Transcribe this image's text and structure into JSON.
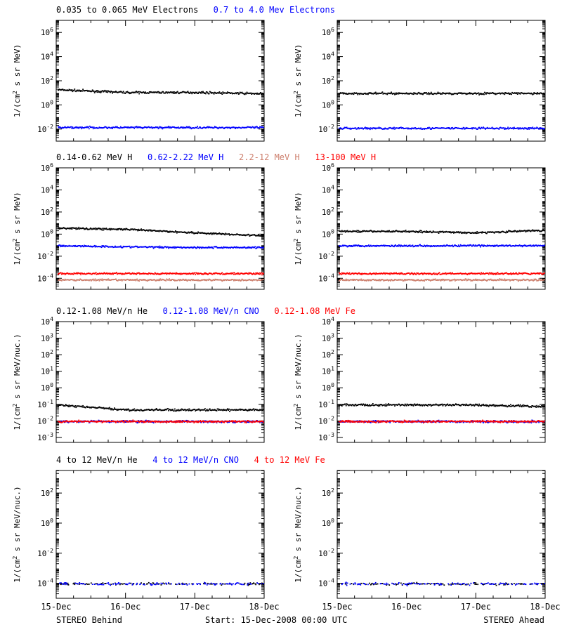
{
  "colors": {
    "black": "#000000",
    "blue": "#0000ff",
    "red": "#ff0000",
    "tan": "#cd7f6d"
  },
  "x_ticks": [
    "15-Dec",
    "16-Dec",
    "17-Dec",
    "18-Dec"
  ],
  "footer": {
    "left": "STEREO Behind",
    "center": "Start: 15-Dec-2008 00:00 UTC",
    "right": "STEREO Ahead"
  },
  "chart_data": [
    {
      "type": "scatter",
      "title": "",
      "legend": [
        {
          "label": "0.035 to 0.065 MeV Electrons",
          "color": "#000000"
        },
        {
          "label": "0.7 to 4.0 Mev Electrons",
          "color": "#0000ff"
        }
      ],
      "ylabel": "1/(cm2 s sr MeV)",
      "yscale": "log",
      "ylim_exp": [
        -3,
        7
      ],
      "y_tick_exponents": [
        -2,
        0,
        2,
        4,
        6
      ],
      "x_range_days": [
        0,
        3
      ],
      "panels": [
        {
          "spacecraft": "STEREO Behind",
          "series": [
            {
              "name": "0.035 to 0.065 MeV Electrons",
              "color": "#000000",
              "levels": [
                20,
                12,
                12,
                9.5
              ]
            },
            {
              "name": "0.7 to 4.0 Mev Electrons",
              "color": "#0000ff",
              "levels": [
                0.015,
                0.015,
                0.015,
                0.015
              ]
            }
          ]
        },
        {
          "spacecraft": "STEREO Ahead",
          "series": [
            {
              "name": "0.035 to 0.065 MeV Electrons",
              "color": "#000000",
              "levels": [
                10,
                10,
                10,
                10
              ]
            },
            {
              "name": "0.7 to 4.0 Mev Electrons",
              "color": "#0000ff",
              "levels": [
                0.013,
                0.013,
                0.013,
                0.013
              ]
            }
          ]
        }
      ]
    },
    {
      "type": "scatter",
      "title": "",
      "legend": [
        {
          "label": "0.14-0.62 MeV H",
          "color": "#000000"
        },
        {
          "label": "0.62-2.22 MeV H",
          "color": "#0000ff"
        },
        {
          "label": "2.2-12 MeV H",
          "color": "#cd7f6d"
        },
        {
          "label": "13-100 MeV H",
          "color": "#ff0000"
        }
      ],
      "ylabel": "1/(cm2 s sr MeV)",
      "yscale": "log",
      "ylim_exp": [
        -5,
        6
      ],
      "y_tick_exponents": [
        -4,
        -2,
        0,
        2,
        4,
        6
      ],
      "x_range_days": [
        0,
        3
      ],
      "panels": [
        {
          "spacecraft": "STEREO Behind",
          "series": [
            {
              "name": "0.14-0.62 MeV H",
              "color": "#000000",
              "levels": [
                4,
                3,
                1.5,
                0.8
              ]
            },
            {
              "name": "0.62-2.22 MeV H",
              "color": "#0000ff",
              "levels": [
                0.1,
                0.08,
                0.07,
                0.07
              ]
            },
            {
              "name": "2.2-12 MeV H",
              "color": "#cd7f6d",
              "levels": [
                8e-05,
                8e-05,
                8e-05,
                8e-05
              ]
            },
            {
              "name": "13-100 MeV H",
              "color": "#ff0000",
              "levels": [
                0.0003,
                0.0003,
                0.0003,
                0.0003
              ]
            }
          ]
        },
        {
          "spacecraft": "STEREO Ahead",
          "series": [
            {
              "name": "0.14-0.62 MeV H",
              "color": "#000000",
              "levels": [
                2,
                2,
                1.5,
                2.5
              ]
            },
            {
              "name": "0.62-2.22 MeV H",
              "color": "#0000ff",
              "levels": [
                0.1,
                0.1,
                0.1,
                0.1
              ]
            },
            {
              "name": "2.2-12 MeV H",
              "color": "#cd7f6d",
              "levels": [
                8e-05,
                8e-05,
                8e-05,
                8e-05
              ]
            },
            {
              "name": "13-100 MeV H",
              "color": "#ff0000",
              "levels": [
                0.0003,
                0.0003,
                0.0003,
                0.0003
              ]
            }
          ]
        }
      ]
    },
    {
      "type": "scatter",
      "title": "",
      "legend": [
        {
          "label": "0.12-1.08 MeV/n He",
          "color": "#000000"
        },
        {
          "label": "0.12-1.08 MeV/n CNO",
          "color": "#0000ff"
        },
        {
          "label": "0.12-1.08 MeV Fe",
          "color": "#ff0000"
        }
      ],
      "ylabel": "1/(cm2 s sr MeV/nuc.)",
      "yscale": "log",
      "ylim_exp": [
        -3.3,
        4
      ],
      "y_tick_exponents": [
        -3,
        -2,
        -1,
        0,
        1,
        2,
        3,
        4
      ],
      "x_range_days": [
        0,
        3
      ],
      "panels": [
        {
          "spacecraft": "STEREO Behind",
          "series": [
            {
              "name": "0.12-1.08 MeV/n He",
              "color": "#000000",
              "levels": [
                0.1,
                0.05,
                0.05,
                0.05
              ]
            },
            {
              "name": "0.12-1.08 MeV/n CNO",
              "color": "#0000ff",
              "levels": [
                0.01,
                0.01,
                0.01,
                0.01
              ]
            },
            {
              "name": "0.12-1.08 MeV Fe",
              "color": "#ff0000",
              "levels": [
                0.01,
                0.01,
                0.01,
                0.01
              ]
            }
          ]
        },
        {
          "spacecraft": "STEREO Ahead",
          "series": [
            {
              "name": "0.12-1.08 MeV/n He",
              "color": "#000000",
              "levels": [
                0.1,
                0.1,
                0.1,
                0.08
              ]
            },
            {
              "name": "0.12-1.08 MeV/n CNO",
              "color": "#0000ff",
              "levels": [
                0.01,
                0.01,
                0.01,
                0.01
              ]
            },
            {
              "name": "0.12-1.08 MeV Fe",
              "color": "#ff0000",
              "levels": [
                0.01,
                0.01,
                0.01,
                0.01
              ]
            }
          ]
        }
      ]
    },
    {
      "type": "scatter",
      "title": "",
      "legend": [
        {
          "label": "4 to 12 MeV/n He",
          "color": "#000000"
        },
        {
          "label": "4 to 12 MeV/n CNO",
          "color": "#0000ff"
        },
        {
          "label": "4 to 12 MeV Fe",
          "color": "#ff0000"
        }
      ],
      "ylabel": "1/(cm2 s sr MeV/nuc.)",
      "yscale": "log",
      "ylim_exp": [
        -5,
        3.5
      ],
      "y_tick_exponents": [
        -4,
        -2,
        0,
        2
      ],
      "x_range_days": [
        0,
        3
      ],
      "panels": [
        {
          "spacecraft": "STEREO Behind",
          "series": [
            {
              "name": "4 to 12 MeV/n He",
              "color": "#000000",
              "levels": [
                0.0001,
                0.0001,
                0.0001,
                0.0001
              ]
            },
            {
              "name": "4 to 12 MeV/n CNO",
              "color": "#0000ff",
              "levels": [
                0.0001,
                0.0001,
                0.0001,
                0.0001
              ]
            }
          ]
        },
        {
          "spacecraft": "STEREO Ahead",
          "series": [
            {
              "name": "4 to 12 MeV/n He",
              "color": "#000000",
              "levels": [
                0.0001,
                0.0001,
                0.0001,
                0.0001
              ]
            },
            {
              "name": "4 to 12 MeV/n CNO",
              "color": "#0000ff",
              "levels": [
                0.0001,
                0.0001,
                0.0001,
                0.0001
              ]
            }
          ]
        }
      ]
    }
  ]
}
